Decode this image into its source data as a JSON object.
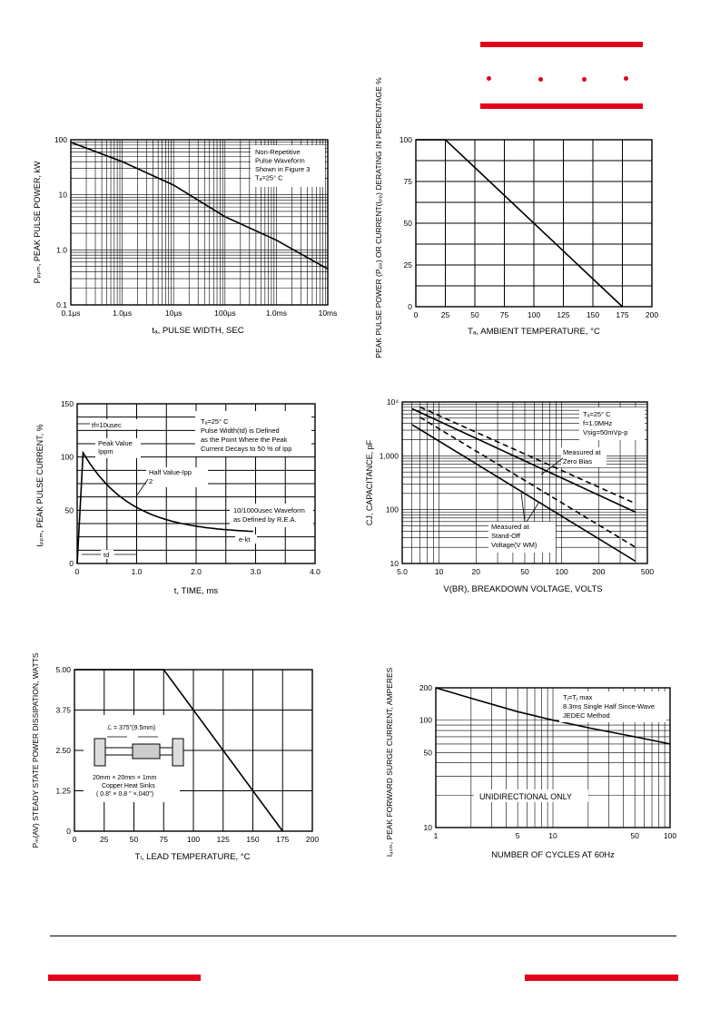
{
  "charts": [
    {
      "type": "line",
      "xscale": "log",
      "yscale": "log",
      "x_ticks": [
        0.1,
        1,
        10,
        100,
        1000,
        10000
      ],
      "x_tick_labels": [
        "0.1µs",
        "1.0µs",
        "10µs",
        "100µs",
        "1.0ms",
        "10ms"
      ],
      "y_ticks": [
        0.1,
        1,
        10,
        100
      ],
      "y_tick_labels": [
        "0.1",
        "1.0",
        "10",
        "100"
      ],
      "xlabel": "tₐ, PULSE WIDTH, SEC",
      "ylabel": "Pₚₚₘ, PEAK PULSE POWER, kW",
      "annotation": [
        "Non-Repetitive",
        "Pulse Waveform",
        "Shown in Figure 3",
        "Tₐ=25° C"
      ],
      "series": [
        {
          "x": [
            0.1,
            1,
            10,
            100,
            1000,
            10000
          ],
          "y": [
            90,
            40,
            15,
            4,
            1.5,
            0.45
          ]
        }
      ]
    },
    {
      "type": "line",
      "x_ticks": [
        0,
        25,
        50,
        75,
        100,
        125,
        150,
        175,
        200
      ],
      "y_ticks": [
        0,
        25,
        50,
        75,
        100
      ],
      "xlabel": "Tₐ, AMBIENT   TEMPERATURE, °C",
      "ylabel": "PEAK PULSE POWER (Pₚₚ) OR CURRENT(Iₚₚ) DERATING IN PERCENTAGE %",
      "series": [
        {
          "x": [
            0,
            25,
            175
          ],
          "y": [
            100,
            100,
            0
          ]
        }
      ]
    },
    {
      "type": "line",
      "x_ticks": [
        0,
        1,
        2,
        3,
        4
      ],
      "x_tick_labels": [
        "0",
        "1.0",
        "2.0",
        "3.0",
        "4.0"
      ],
      "y_ticks": [
        0,
        50,
        100,
        150
      ],
      "xlabel": "t, TIME, ms",
      "ylabel": "Iₚₚₘ, PEAK PULSE CURRENT, %",
      "annotations": {
        "tr": "tf=10usec",
        "conditions": [
          "Tₐ=25° C",
          "Pulse Width(td) is Defined",
          "as the Point Where the Peak",
          "Current Decays to 50 % of Ipp"
        ],
        "peak": [
          "Peak Value",
          "Ippm"
        ],
        "half": [
          "Half Value-Ipp",
          "2"
        ],
        "waveform": [
          "10/1000usec Waveform",
          "as Defined by R.E.A."
        ],
        "ekt": "e-kt",
        "td": "td"
      },
      "series": [
        {
          "x": [
            0,
            0.1,
            0.5,
            1,
            1.5,
            2,
            2.5,
            3
          ],
          "y": [
            0,
            104,
            82,
            60,
            45,
            35,
            30,
            28
          ]
        }
      ]
    },
    {
      "type": "line",
      "xscale": "log",
      "yscale": "log",
      "x_ticks": [
        5,
        10,
        20,
        50,
        100,
        200,
        500
      ],
      "x_tick_labels": [
        "5.0",
        "10",
        "20",
        "50",
        "100",
        "200",
        "500"
      ],
      "y_ticks": [
        10,
        100,
        1000,
        10000
      ],
      "y_tick_labels": [
        "10",
        "100",
        "1,000",
        "10⁴"
      ],
      "xlabel": "V(BR), BREAKDOWN VOLTAGE, VOLTS",
      "ylabel": "CJ, CAPACITANCE, pF",
      "annotation": [
        "Tₐ=25° C",
        "f=1.0MHz",
        "Vsig=50mVp-p"
      ],
      "label_zero_bias": [
        "Measured at",
        "Zero Bias"
      ],
      "label_standoff": [
        "Measured at",
        "Stand-Off",
        "Voltage(V WM)"
      ],
      "series": [
        {
          "style": "solid",
          "x": [
            6,
            400
          ],
          "y": [
            7500,
            90
          ]
        },
        {
          "style": "dashed",
          "x": [
            7,
            400
          ],
          "y": [
            8000,
            130
          ]
        },
        {
          "style": "solid",
          "x": [
            6,
            400
          ],
          "y": [
            3800,
            11
          ]
        },
        {
          "style": "dashed",
          "x": [
            7,
            400
          ],
          "y": [
            5200,
            20
          ]
        }
      ]
    },
    {
      "type": "line",
      "x_ticks": [
        0,
        25,
        50,
        75,
        100,
        125,
        150,
        175,
        200
      ],
      "y_ticks": [
        0,
        1.25,
        2.5,
        3.75,
        5.0
      ],
      "y_tick_labels": [
        "0",
        "1.25",
        "2.50",
        "3.75",
        "5.00"
      ],
      "xlabel": "Tₗ, LEAD TEMPERATURE, °C",
      "ylabel": "Pₘ(AV) STEADY STATE POWER DISSIPATION, WATTS",
      "inset": [
        "ℒ = 375\"(9.5mm)",
        "20mm × 20mm × 1mm",
        "Copper Heat Sinks",
        "( 0.8\" × 0.8 \" ×.040\")"
      ],
      "series": [
        {
          "x": [
            0,
            75,
            175
          ],
          "y": [
            5,
            5,
            0
          ]
        }
      ]
    },
    {
      "type": "line",
      "xscale": "log",
      "yscale": "log",
      "x_ticks": [
        1,
        5,
        10,
        50,
        100
      ],
      "y_ticks": [
        10,
        50,
        100,
        200
      ],
      "xlabel": "NUMBER OF CYCLES AT 60Hz",
      "ylabel": "Iₔₛₘ, PEAK FORWARD SURGE CURRENT, AMPERES",
      "annotation": [
        "Tⱼ=Tⱼ max",
        "8.3ms Single Half Since-Wave",
        "JEDEC Method"
      ],
      "note": "UNIDIRECTIONAL ONLY",
      "series": [
        {
          "x": [
            1,
            2,
            5,
            10,
            20,
            50,
            100
          ],
          "y": [
            200,
            160,
            120,
            100,
            85,
            70,
            60
          ]
        }
      ]
    }
  ]
}
